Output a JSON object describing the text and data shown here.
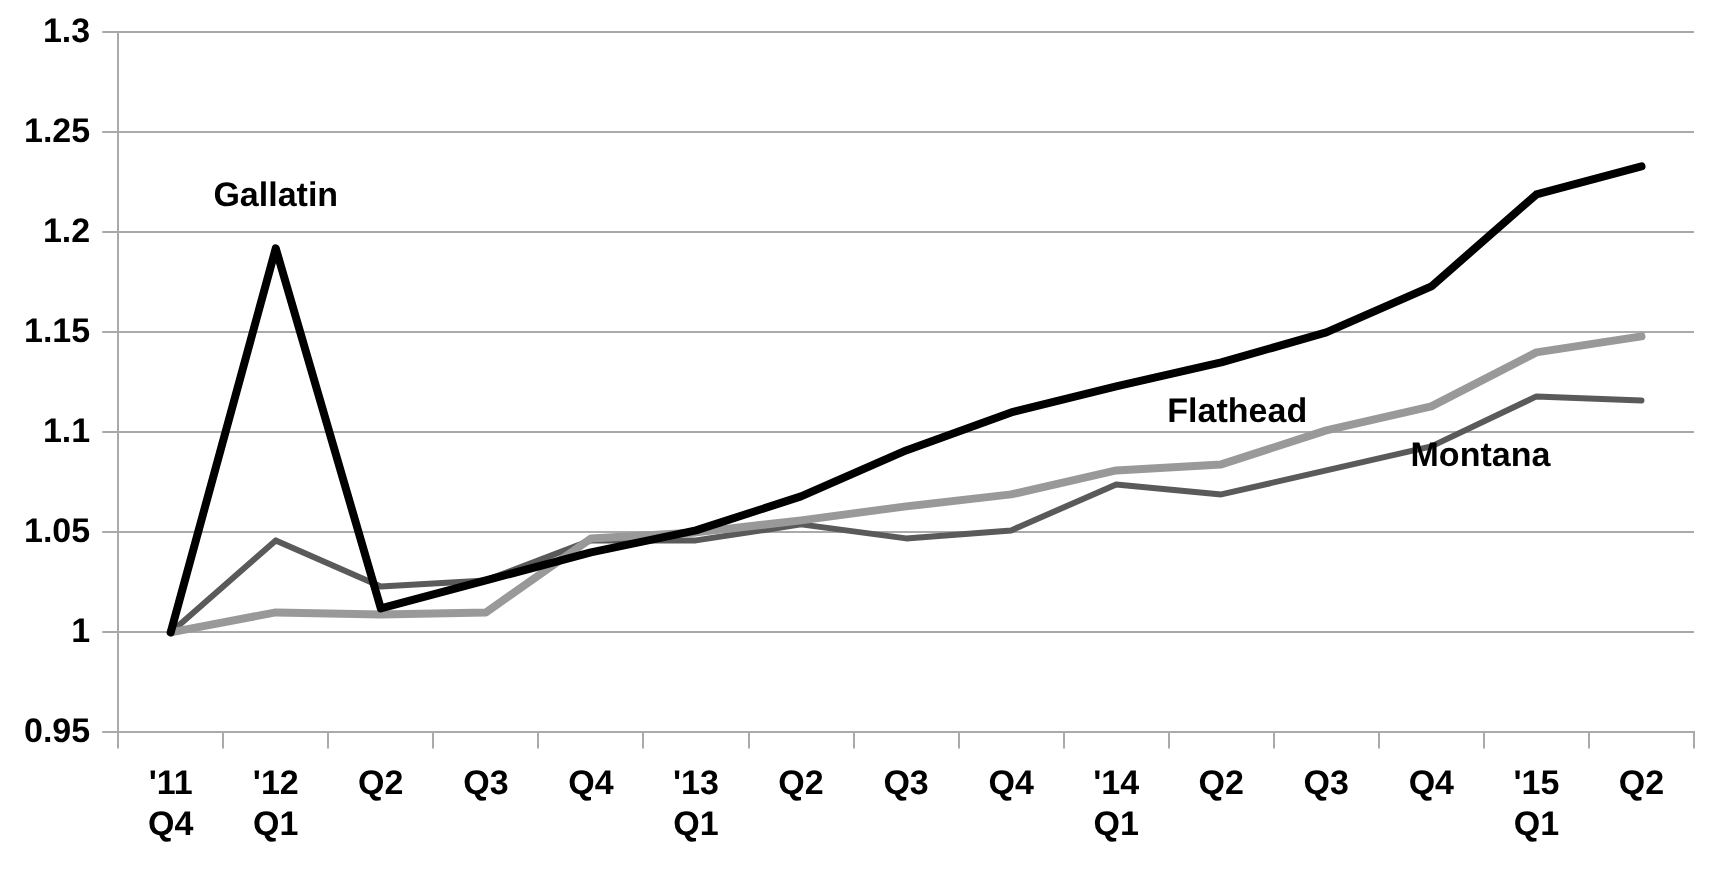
{
  "chart_data": {
    "type": "line",
    "categories": [
      "'11 Q4",
      "'12 Q1",
      "Q2",
      "Q3",
      "Q4",
      "'13 Q1",
      "Q2",
      "Q3",
      "Q4",
      "'14 Q1",
      "Q2",
      "Q3",
      "Q4",
      "'15 Q1",
      "Q2"
    ],
    "series": [
      {
        "name": "Gallatin",
        "color": "#000000",
        "values": [
          1.0,
          1.192,
          1.012,
          1.026,
          1.04,
          1.051,
          1.068,
          1.091,
          1.11,
          1.123,
          1.135,
          1.15,
          1.173,
          1.219,
          1.233
        ]
      },
      {
        "name": "Flathead",
        "color": "#999999",
        "values": [
          1.0,
          1.01,
          1.009,
          1.01,
          1.047,
          1.05,
          1.056,
          1.063,
          1.069,
          1.081,
          1.084,
          1.101,
          1.113,
          1.14,
          1.148
        ]
      },
      {
        "name": "Montana",
        "color": "#5a5a5a",
        "values": [
          1.0,
          1.046,
          1.023,
          1.026,
          1.046,
          1.046,
          1.054,
          1.047,
          1.051,
          1.074,
          1.069,
          1.081,
          1.093,
          1.118,
          1.116
        ]
      }
    ],
    "ylim": [
      0.95,
      1.3
    ],
    "yticks": [
      0.95,
      1,
      1.05,
      1.1,
      1.15,
      1.2,
      1.25,
      1.3
    ],
    "grid": "y",
    "legend": false,
    "marker": "none",
    "line_style": "solid"
  }
}
